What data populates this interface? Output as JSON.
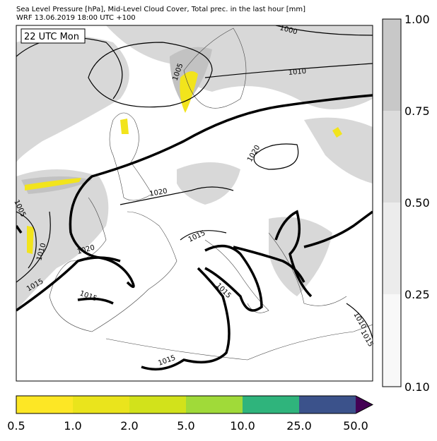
{
  "header": {
    "line1": "Sea Level Pressure [hPa], Mid-Level Cloud Cover, Total prec. in the last hour [mm]",
    "line2": "WRF 13.06.2019 18:00 UTC +100"
  },
  "time_label": "22 UTC Mon",
  "contour_labels": [
    "1000",
    "1005",
    "1010",
    "1020",
    "1005",
    "1010",
    "1015",
    "1020",
    "1020",
    "1015",
    "1015",
    "1015",
    "1015",
    "1015",
    "1010"
  ],
  "cloud_colorbar": {
    "labels": [
      "1.00",
      "0.75",
      "0.50",
      "0.25",
      "0.10"
    ]
  },
  "precip_colorbar": {
    "labels": [
      "0.5",
      "1.0",
      "2.0",
      "5.0",
      "10.0",
      "25.0",
      "50.0"
    ]
  }
}
